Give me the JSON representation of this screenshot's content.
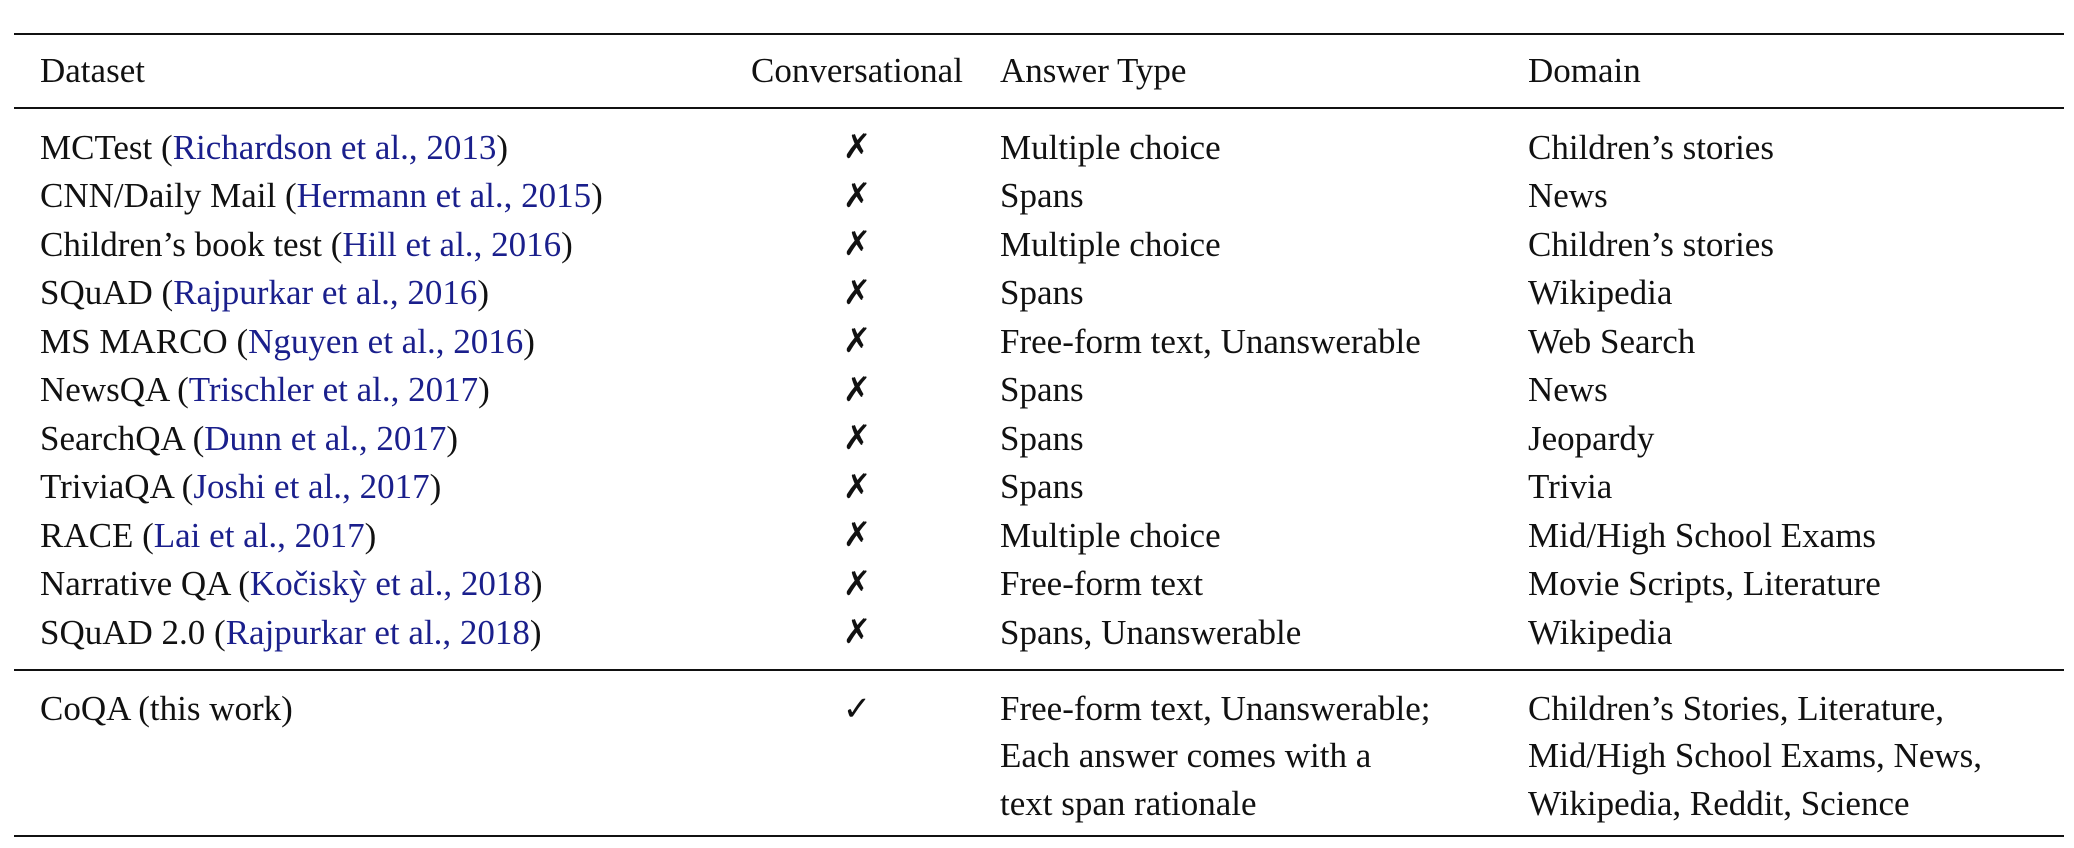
{
  "headers": {
    "dataset": "Dataset",
    "conversational": "Conversational",
    "answer_type": "Answer Type",
    "domain": "Domain"
  },
  "rows": [
    {
      "name": "MCTest",
      "cite": "Richardson et al.",
      "year": "2013",
      "conv": "✗",
      "answer": "Multiple choice",
      "domain": "Children’s stories"
    },
    {
      "name": "CNN/Daily Mail",
      "cite": "Hermann et al.",
      "year": "2015",
      "conv": "✗",
      "answer": "Spans",
      "domain": "News"
    },
    {
      "name": "Children’s book test",
      "cite": "Hill et al.",
      "year": "2016",
      "conv": "✗",
      "answer": "Multiple choice",
      "domain": "Children’s stories"
    },
    {
      "name": "SQuAD",
      "cite": "Rajpurkar et al.",
      "year": "2016",
      "conv": "✗",
      "answer": "Spans",
      "domain": "Wikipedia"
    },
    {
      "name": "MS MARCO",
      "cite": "Nguyen et al.",
      "year": "2016",
      "conv": "✗",
      "answer": "Free-form text, Unanswerable",
      "domain": "Web Search"
    },
    {
      "name": "NewsQA",
      "cite": "Trischler et al.",
      "year": "2017",
      "conv": "✗",
      "answer": "Spans",
      "domain": "News"
    },
    {
      "name": "SearchQA",
      "cite": "Dunn et al.",
      "year": "2017",
      "conv": "✗",
      "answer": "Spans",
      "domain": "Jeopardy"
    },
    {
      "name": "TriviaQA",
      "cite": "Joshi et al.",
      "year": "2017",
      "conv": "✗",
      "answer": "Spans",
      "domain": "Trivia"
    },
    {
      "name": "RACE",
      "cite": "Lai et al.",
      "year": "2017",
      "conv": "✗",
      "answer": "Multiple choice",
      "domain": "Mid/High School Exams"
    },
    {
      "name": "Narrative QA",
      "cite": "Kočiskỳ et al.",
      "year": "2018",
      "conv": "✗",
      "answer": "Free-form text",
      "domain": "Movie Scripts, Literature"
    },
    {
      "name": "SQuAD 2.0",
      "cite": "Rajpurkar et al.",
      "year": "2018",
      "conv": "✗",
      "answer": "Spans, Unanswerable",
      "domain": "Wikipedia"
    }
  ],
  "coqa": {
    "name": "CoQA (this work)",
    "conv": "✓",
    "answer_lines": [
      "Free-form text, Unanswerable;",
      "Each answer comes with a",
      "text span rationale"
    ],
    "domain_lines": [
      "Children’s Stories, Literature,",
      "Mid/High School Exams, News,",
      "Wikipedia, Reddit, Science"
    ]
  },
  "colors": {
    "citation": "#1a1f8c",
    "text": "#111111"
  }
}
